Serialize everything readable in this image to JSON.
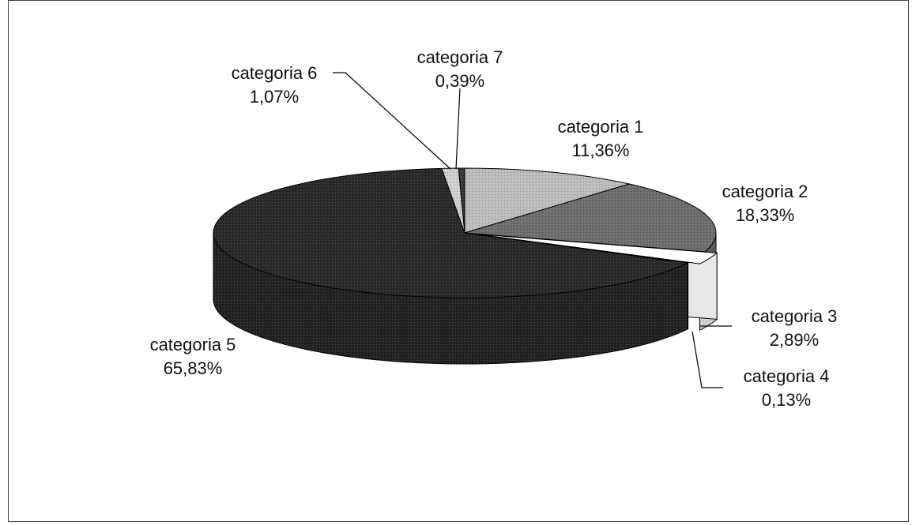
{
  "chart_data": {
    "type": "pie",
    "style": "3d-exploded",
    "slices": [
      {
        "category": "categoria 1",
        "value": 11.36,
        "value_label": "11,36%",
        "color": "#bdbdbd"
      },
      {
        "category": "categoria 2",
        "value": 18.33,
        "value_label": "18,33%",
        "color": "#6e6e6e"
      },
      {
        "category": "categoria 3",
        "value": 2.89,
        "value_label": "2,89%",
        "color": "#ffffff"
      },
      {
        "category": "categoria 4",
        "value": 0.13,
        "value_label": "0,13%",
        "color": "#a9a9a9"
      },
      {
        "category": "categoria 5",
        "value": 65.83,
        "value_label": "65,83%",
        "color": "#2a2a2a"
      },
      {
        "category": "categoria 6",
        "value": 1.07,
        "value_label": "1,07%",
        "color": "#cfcfcf"
      },
      {
        "category": "categoria 7",
        "value": 0.39,
        "value_label": "0,39%",
        "color": "#3a3a3a"
      }
    ],
    "legend": "none"
  }
}
